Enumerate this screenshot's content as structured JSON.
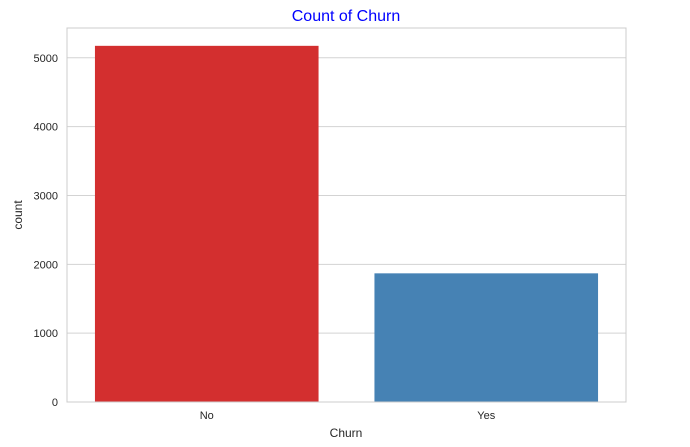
{
  "chart_data": {
    "type": "bar",
    "title": "Count of Churn",
    "xlabel": "Churn",
    "ylabel": "count",
    "categories": [
      "No",
      "Yes"
    ],
    "values": [
      5174,
      1869
    ],
    "colors": [
      "#d32f2f",
      "#4682b4"
    ],
    "title_color": "#0000ff",
    "ylim": [
      0,
      5433
    ],
    "yticks": [
      0,
      1000,
      2000,
      3000,
      4000,
      5000
    ],
    "ytick_labels": [
      "0",
      "1000",
      "2000",
      "3000",
      "4000",
      "5000"
    ],
    "grid": true,
    "legend": "none"
  }
}
